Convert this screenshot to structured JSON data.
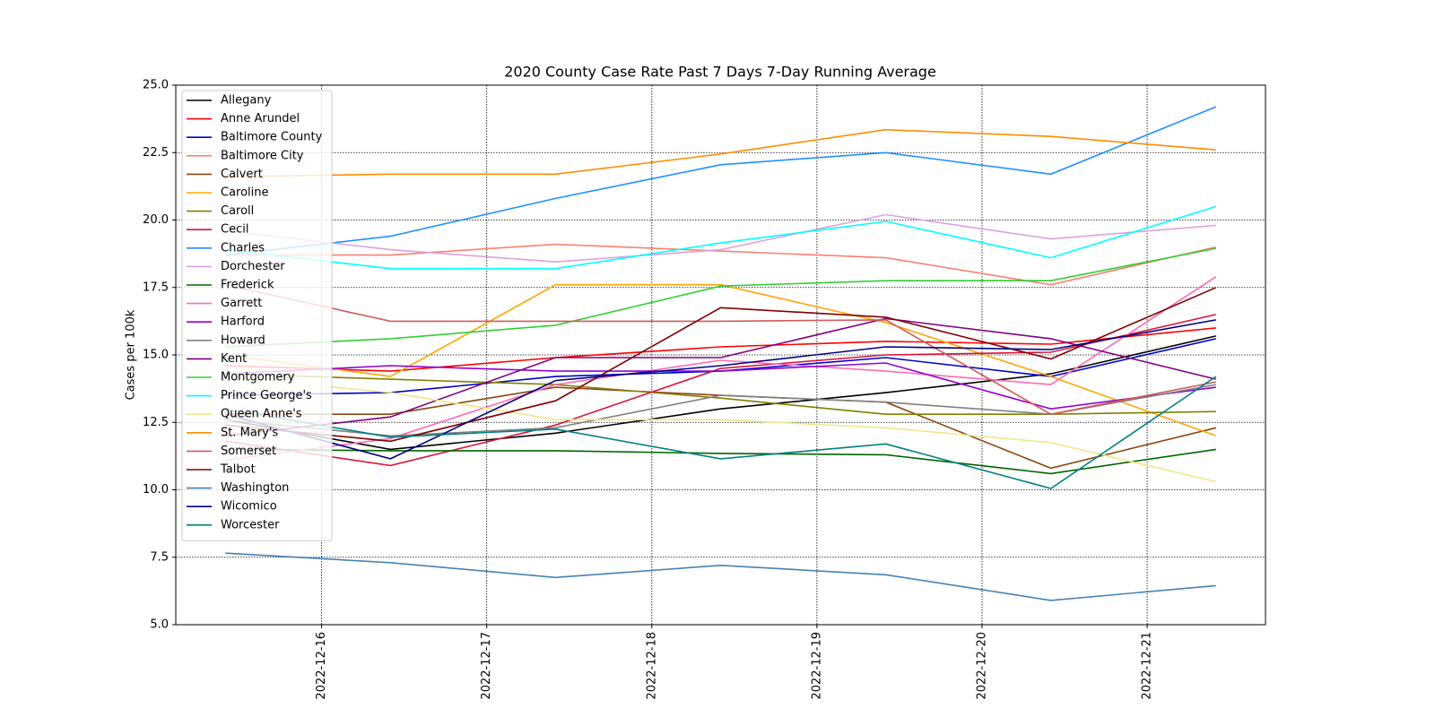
{
  "chart_data": {
    "type": "line",
    "title": "2020 County Case Rate  Past 7 Days 7-Day Running Average",
    "ylabel": "Cases per 100k",
    "x": [
      "2022-12-15T10:00",
      "2022-12-16T10:00",
      "2022-12-17T10:00",
      "2022-12-18T10:00",
      "2022-12-19T10:00",
      "2022-12-20T10:00",
      "2022-12-21T10:00"
    ],
    "xlim": [
      "2022-12-15T02:48",
      "2022-12-21T17:12"
    ],
    "xticks": [
      "2022-12-16",
      "2022-12-17",
      "2022-12-18",
      "2022-12-19",
      "2022-12-20",
      "2022-12-21"
    ],
    "ylim": [
      5,
      25
    ],
    "yticks": [
      {
        "value": 5,
        "label": "5.0"
      },
      {
        "value": 7.5,
        "label": "7.5"
      },
      {
        "value": 10,
        "label": "10.0"
      },
      {
        "value": 12.5,
        "label": "12.5"
      },
      {
        "value": 15,
        "label": "15.0"
      },
      {
        "value": 17.5,
        "label": "17.5"
      },
      {
        "value": 20,
        "label": "20.0"
      },
      {
        "value": 22.5,
        "label": "22.5"
      },
      {
        "value": 25,
        "label": "25.0"
      }
    ],
    "grid": true,
    "legend": "upper left",
    "series": [
      {
        "name": "Allegany",
        "color": "black",
        "values": [
          12.6,
          11.5,
          12.1,
          13.0,
          13.6,
          14.3,
          15.7
        ]
      },
      {
        "name": "Anne Arundel",
        "color": "red",
        "values": [
          14.6,
          14.4,
          14.9,
          15.3,
          15.5,
          15.4,
          16.0
        ]
      },
      {
        "name": "Baltimore County",
        "color": "mediumblue",
        "values": [
          13.5,
          13.6,
          14.2,
          14.4,
          14.9,
          14.2,
          15.6
        ]
      },
      {
        "name": "Baltimore City",
        "color": "salmon",
        "values": [
          18.7,
          18.7,
          19.1,
          18.85,
          18.6,
          17.6,
          19.0
        ]
      },
      {
        "name": "Calvert",
        "color": "saddlebrown",
        "values": [
          12.8,
          12.8,
          13.8,
          13.5,
          13.25,
          10.8,
          12.3
        ]
      },
      {
        "name": "Caroline",
        "color": "orange",
        "values": [
          15.0,
          14.2,
          17.6,
          17.6,
          16.2,
          14.2,
          12.0
        ]
      },
      {
        "name": "Caroll",
        "color": "olive",
        "values": [
          14.3,
          14.1,
          13.9,
          13.4,
          12.8,
          12.8,
          12.9
        ]
      },
      {
        "name": "Cecil",
        "color": "crimson",
        "values": [
          11.8,
          10.9,
          12.4,
          14.5,
          15.0,
          15.1,
          16.5
        ]
      },
      {
        "name": "Charles",
        "color": "dodgerblue",
        "values": [
          18.7,
          19.4,
          20.8,
          22.05,
          22.5,
          21.7,
          24.2
        ]
      },
      {
        "name": "Dorchester",
        "color": "plum",
        "values": [
          19.6,
          18.9,
          18.45,
          18.9,
          20.2,
          19.3,
          19.8
        ]
      },
      {
        "name": "Frederick",
        "color": "darkgreen",
        "values": [
          11.5,
          11.45,
          11.45,
          11.35,
          11.3,
          10.6,
          11.5
        ]
      },
      {
        "name": "Garrett",
        "color": "hotpink",
        "values": [
          11.1,
          11.9,
          13.9,
          14.8,
          14.4,
          13.9,
          17.9
        ]
      },
      {
        "name": "Harford",
        "color": "darkviolet",
        "values": [
          14.3,
          14.6,
          14.4,
          14.4,
          14.7,
          13.0,
          13.8
        ]
      },
      {
        "name": "Howard",
        "color": "gray",
        "values": [
          12.6,
          12.0,
          12.3,
          13.5,
          13.25,
          12.8,
          13.9
        ]
      },
      {
        "name": "Kent",
        "color": "purple",
        "values": [
          12.0,
          12.7,
          14.9,
          14.9,
          16.35,
          15.6,
          14.1
        ]
      },
      {
        "name": "Montgomery",
        "color": "limegreen",
        "values": [
          15.3,
          15.6,
          16.1,
          17.55,
          17.75,
          17.75,
          18.95
        ]
      },
      {
        "name": "Prince George's",
        "color": "cyan",
        "values": [
          18.9,
          18.2,
          18.2,
          19.15,
          19.95,
          18.6,
          20.5
        ]
      },
      {
        "name": "Queen Anne's",
        "color": "khaki",
        "values": [
          14.2,
          13.6,
          12.6,
          12.6,
          12.3,
          11.75,
          10.3
        ]
      },
      {
        "name": "St. Mary's",
        "color": "darkorange",
        "values": [
          21.6,
          21.7,
          21.7,
          22.45,
          23.35,
          23.1,
          22.6
        ]
      },
      {
        "name": "Somerset",
        "color": "indianred",
        "values": [
          17.6,
          16.25,
          16.25,
          16.25,
          16.3,
          12.8,
          14.0
        ]
      },
      {
        "name": "Talbot",
        "color": "maroon",
        "values": [
          12.4,
          11.8,
          13.3,
          16.75,
          16.4,
          14.85,
          17.5
        ]
      },
      {
        "name": "Washington",
        "color": "steelblue",
        "values": [
          7.65,
          7.3,
          6.75,
          7.2,
          6.85,
          5.9,
          6.45
        ]
      },
      {
        "name": "Wicomico",
        "color": "navy",
        "values": [
          12.8,
          11.15,
          14.05,
          14.6,
          15.3,
          15.2,
          16.3
        ]
      },
      {
        "name": "Worcester",
        "color": "teal",
        "values": [
          13.0,
          11.95,
          12.25,
          11.15,
          11.7,
          10.05,
          14.2
        ]
      }
    ]
  }
}
